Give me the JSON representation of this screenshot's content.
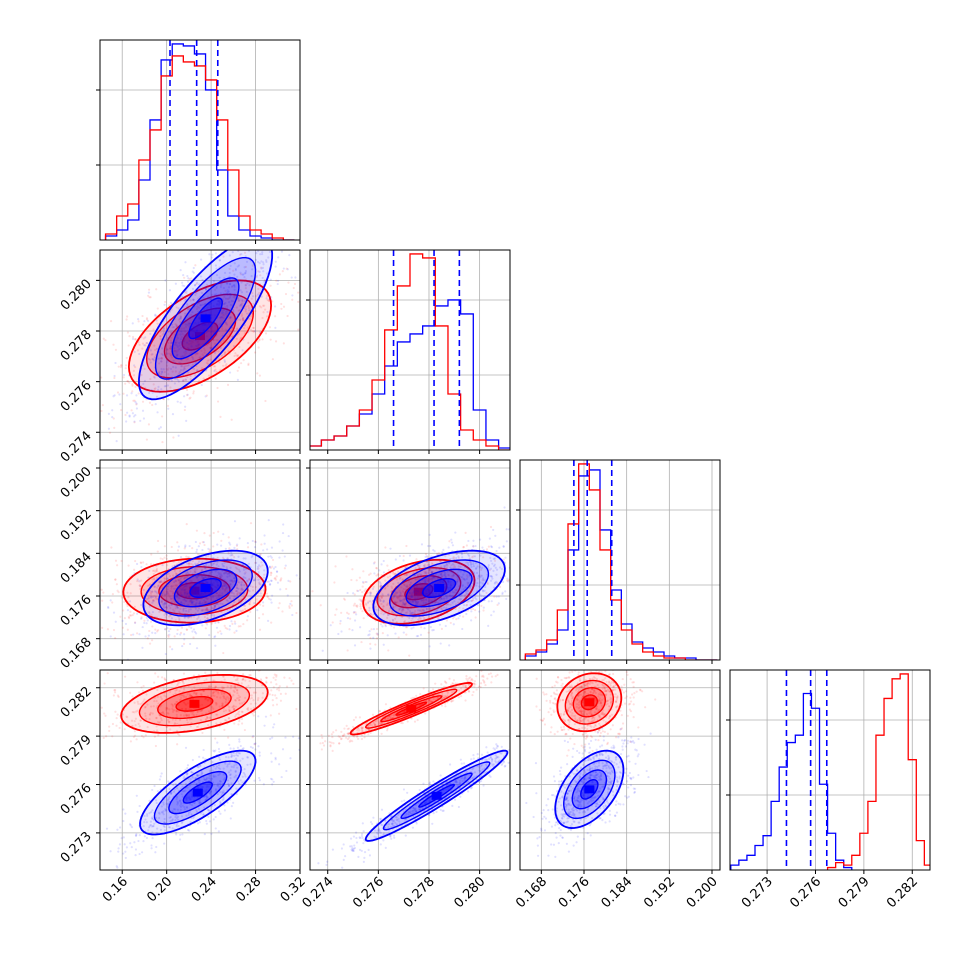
{
  "chart_data": {
    "type": "corner",
    "grid": true,
    "colors": {
      "series_a": "#0000ff",
      "series_b": "#ff0000"
    },
    "parameters": [
      {
        "range": [
          0.14,
          0.32
        ],
        "ticks": [
          "0.16",
          "0.20",
          "0.24",
          "0.28",
          "0.32"
        ],
        "tick_values": [
          0.16,
          0.2,
          0.24,
          0.28,
          0.32
        ]
      },
      {
        "range": [
          0.2733,
          0.2812
        ],
        "ticks": [
          "0.274",
          "0.276",
          "0.278",
          "0.280"
        ],
        "tick_values": [
          0.274,
          0.276,
          0.278,
          0.28
        ]
      },
      {
        "range": [
          0.164,
          0.2015
        ],
        "ticks": [
          "0.168",
          "0.176",
          "0.184",
          "0.192",
          "0.200"
        ],
        "tick_values": [
          0.168,
          0.176,
          0.184,
          0.192,
          0.2
        ]
      },
      {
        "range": [
          0.2707,
          0.2831
        ],
        "ticks": [
          "0.273",
          "0.276",
          "0.279",
          "0.282"
        ],
        "tick_values": [
          0.273,
          0.276,
          0.279,
          0.282
        ]
      }
    ],
    "histograms": [
      {
        "blue": {
          "x": [
            0.15,
            0.16,
            0.17,
            0.18,
            0.19,
            0.2,
            0.21,
            0.22,
            0.23,
            0.24,
            0.25,
            0.26,
            0.27,
            0.28,
            0.29,
            0.3,
            0.31
          ],
          "y": [
            0.02,
            0.05,
            0.1,
            0.3,
            0.6,
            0.9,
            0.98,
            0.97,
            0.93,
            0.75,
            0.35,
            0.12,
            0.05,
            0.02,
            0.01,
            0.0,
            0.0
          ]
        },
        "red": {
          "x": [
            0.15,
            0.16,
            0.17,
            0.18,
            0.19,
            0.2,
            0.21,
            0.22,
            0.23,
            0.24,
            0.25,
            0.26,
            0.27,
            0.28,
            0.29,
            0.3,
            0.31
          ],
          "y": [
            0.03,
            0.12,
            0.18,
            0.4,
            0.55,
            0.82,
            0.92,
            0.89,
            0.87,
            0.8,
            0.6,
            0.35,
            0.12,
            0.05,
            0.03,
            0.01,
            0.0
          ]
        },
        "quantiles": [
          0.203,
          0.227,
          0.246
        ]
      },
      {
        "blue": {
          "x": [
            0.2735,
            0.274,
            0.2745,
            0.275,
            0.2755,
            0.276,
            0.2765,
            0.277,
            0.2775,
            0.278,
            0.2785,
            0.279,
            0.2795,
            0.28,
            0.2805,
            0.281
          ],
          "y": [
            0.02,
            0.05,
            0.07,
            0.12,
            0.18,
            0.28,
            0.42,
            0.54,
            0.58,
            0.62,
            0.72,
            0.75,
            0.68,
            0.2,
            0.05,
            0.01
          ]
        },
        "red": {
          "x": [
            0.2735,
            0.274,
            0.2745,
            0.275,
            0.2755,
            0.276,
            0.2765,
            0.277,
            0.2775,
            0.278,
            0.2785,
            0.279,
            0.2795,
            0.28,
            0.2805,
            0.281
          ],
          "y": [
            0.02,
            0.05,
            0.07,
            0.12,
            0.2,
            0.35,
            0.6,
            0.82,
            0.98,
            0.96,
            0.62,
            0.28,
            0.1,
            0.05,
            0.02,
            0.0
          ]
        },
        "quantiles": [
          0.2766,
          0.2782,
          0.2792
        ]
      },
      {
        "blue": {
          "x": [
            0.166,
            0.168,
            0.17,
            0.172,
            0.174,
            0.176,
            0.178,
            0.18,
            0.182,
            0.184,
            0.186,
            0.188,
            0.19,
            0.192,
            0.194,
            0.196,
            0.198,
            0.2
          ],
          "y": [
            0.02,
            0.04,
            0.08,
            0.15,
            0.55,
            0.92,
            0.95,
            0.65,
            0.35,
            0.18,
            0.09,
            0.06,
            0.04,
            0.02,
            0.01,
            0.01,
            0.0,
            0.0
          ]
        },
        "red": {
          "x": [
            0.166,
            0.168,
            0.17,
            0.172,
            0.174,
            0.176,
            0.178,
            0.18,
            0.182,
            0.184,
            0.186,
            0.188,
            0.19,
            0.192,
            0.194,
            0.196,
            0.198,
            0.2
          ],
          "y": [
            0.03,
            0.05,
            0.1,
            0.25,
            0.68,
            0.98,
            0.85,
            0.55,
            0.3,
            0.15,
            0.08,
            0.04,
            0.02,
            0.01,
            0.01,
            0.0,
            0.0,
            0.0
          ]
        },
        "quantiles": [
          0.1741,
          0.1766,
          0.1812
        ]
      },
      {
        "blue": {
          "x": [
            0.271,
            0.2715,
            0.272,
            0.2725,
            0.273,
            0.2735,
            0.274,
            0.2745,
            0.275,
            0.2755,
            0.276,
            0.2765,
            0.277,
            0.2775,
            0.278
          ],
          "y": [
            0.02,
            0.04,
            0.06,
            0.1,
            0.14,
            0.28,
            0.42,
            0.52,
            0.55,
            0.72,
            0.66,
            0.35,
            0.15,
            0.04,
            0.01
          ]
        },
        "red": {
          "x": [
            0.277,
            0.2775,
            0.278,
            0.2785,
            0.279,
            0.2795,
            0.28,
            0.2805,
            0.281,
            0.2815,
            0.282,
            0.2825,
            0.283
          ],
          "y": [
            0.01,
            0.03,
            0.02,
            0.06,
            0.15,
            0.28,
            0.55,
            0.7,
            0.78,
            0.8,
            0.45,
            0.12,
            0.02
          ]
        },
        "quantiles": [
          0.2742,
          0.2757,
          0.2767
        ]
      }
    ],
    "pairs": [
      {
        "row": 1,
        "col": 0,
        "blue": {
          "mx": 0.235,
          "my": 0.2785,
          "sx": 0.03,
          "sy": 0.0016,
          "rho": 0.78
        },
        "red": {
          "mx": 0.23,
          "my": 0.2778,
          "sx": 0.032,
          "sy": 0.0011,
          "rho": 0.55
        }
      },
      {
        "row": 2,
        "col": 0,
        "blue": {
          "mx": 0.235,
          "my": 0.1775,
          "sx": 0.028,
          "sy": 0.0035,
          "rho": 0.45
        },
        "red": {
          "mx": 0.225,
          "my": 0.177,
          "sx": 0.032,
          "sy": 0.003,
          "rho": 0.05
        }
      },
      {
        "row": 2,
        "col": 1,
        "blue": {
          "mx": 0.2784,
          "my": 0.1775,
          "sx": 0.0013,
          "sy": 0.0035,
          "rho": 0.5
        },
        "red": {
          "mx": 0.2776,
          "my": 0.1768,
          "sx": 0.0011,
          "sy": 0.003,
          "rho": 0.35
        }
      },
      {
        "row": 3,
        "col": 0,
        "blue": {
          "mx": 0.228,
          "my": 0.2755,
          "sx": 0.026,
          "sy": 0.0013,
          "rho": 0.75
        },
        "red": {
          "mx": 0.225,
          "my": 0.281,
          "sx": 0.033,
          "sy": 0.0009,
          "rho": 0.4
        }
      },
      {
        "row": 3,
        "col": 1,
        "blue": {
          "mx": 0.2783,
          "my": 0.2753,
          "sx": 0.0014,
          "sy": 0.0014,
          "rho": 0.96
        },
        "red": {
          "mx": 0.2773,
          "my": 0.2807,
          "sx": 0.0012,
          "sy": 0.0008,
          "rho": 0.95
        }
      },
      {
        "row": 3,
        "col": 2,
        "blue": {
          "mx": 0.177,
          "my": 0.2757,
          "sx": 0.0032,
          "sy": 0.0012,
          "rho": 0.5
        },
        "red": {
          "mx": 0.177,
          "my": 0.2811,
          "sx": 0.003,
          "sy": 0.0009,
          "rho": 0.15
        }
      }
    ]
  }
}
